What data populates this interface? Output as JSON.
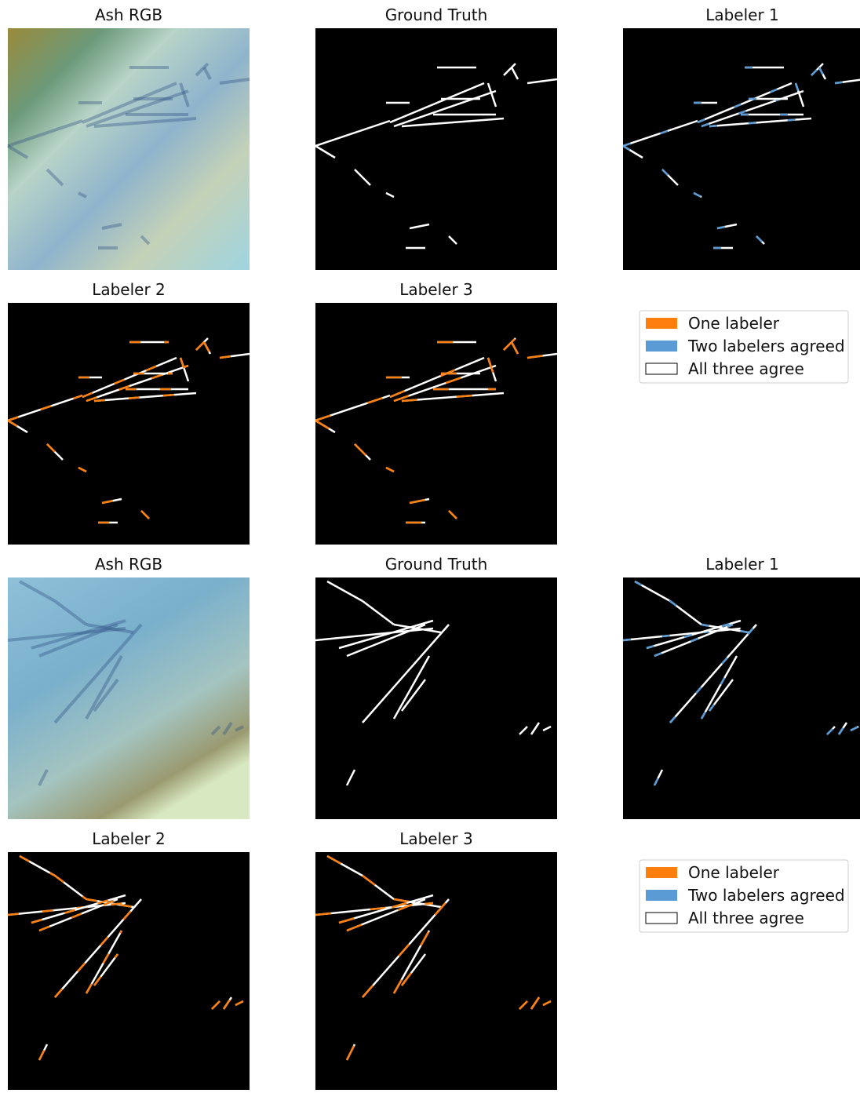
{
  "figures": [
    {
      "panels": [
        {
          "title": "Ash RGB"
        },
        {
          "title": "Ground Truth"
        },
        {
          "title": "Labeler 1"
        },
        {
          "title": "Labeler 2"
        },
        {
          "title": "Labeler 3"
        }
      ],
      "legend": [
        "One labeler",
        "Two labelers agreed",
        "All three agree"
      ]
    },
    {
      "panels": [
        {
          "title": "Ash RGB"
        },
        {
          "title": "Ground Truth"
        },
        {
          "title": "Labeler 1"
        },
        {
          "title": "Labeler 2"
        },
        {
          "title": "Labeler 3"
        }
      ],
      "legend": [
        "One labeler",
        "Two labelers agreed",
        "All three agree"
      ]
    }
  ]
}
